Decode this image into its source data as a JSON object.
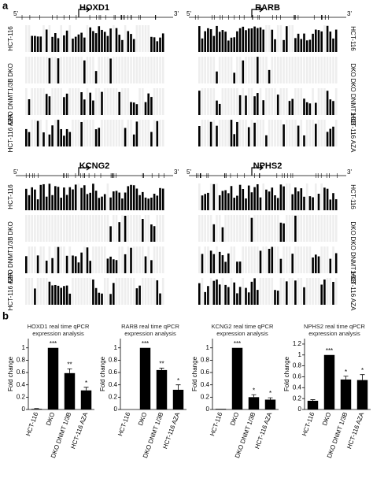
{
  "panel_labels": [
    "a",
    "b"
  ],
  "genes": [
    "HOXD1",
    "RARB",
    "KCNG2",
    "NPHS2"
  ],
  "samples": [
    "HCT-116",
    "DKO",
    "DKO DNMT1/3B",
    "HCT-116 AZA"
  ],
  "strand_labels": [
    "5'",
    "3'"
  ],
  "chart_data": [
    {
      "type": "bar",
      "title": "HOXD1 real time qPCR expression analysis",
      "ylabel": "Fold change",
      "categories": [
        "HCT-116",
        "DKO",
        "DKO DNMT 1/3B",
        "HCT-116 AZA"
      ],
      "values": [
        0.01,
        1.0,
        0.59,
        0.31
      ],
      "errors": [
        0.005,
        0.0,
        0.07,
        0.05
      ],
      "value_labels": [
        null,
        "***",
        "**",
        "*"
      ],
      "color": "#000000",
      "ylim": [
        0,
        1.15
      ],
      "yticks": [
        0,
        0.2,
        0.4,
        0.6,
        0.8,
        1
      ]
    },
    {
      "type": "bar",
      "title": "RARB real time qPCR expression analysis",
      "ylabel": "Fold change",
      "categories": [
        "HCT-116",
        "DKO",
        "DKO DNMT 1/3B",
        "HCT-116 AZA"
      ],
      "values": [
        0.0,
        1.0,
        0.64,
        0.32
      ],
      "errors": [
        0.0,
        0.0,
        0.03,
        0.08
      ],
      "value_labels": [
        null,
        "***",
        "**",
        "*"
      ],
      "color": "#000000",
      "ylim": [
        0,
        1.15
      ],
      "yticks": [
        0,
        0.2,
        0.4,
        0.6,
        0.8,
        1
      ]
    },
    {
      "type": "bar",
      "title": "KCNG2 real time qPCR expression analysis",
      "ylabel": "Fold change",
      "categories": [
        "HCT-116",
        "DKO",
        "DKO DNMT 1/3B",
        "HCT-116 AZA"
      ],
      "values": [
        0.01,
        1.0,
        0.2,
        0.16
      ],
      "errors": [
        0.0,
        0.0,
        0.04,
        0.03
      ],
      "value_labels": [
        null,
        "***",
        "*",
        "*"
      ],
      "color": "#000000",
      "ylim": [
        0,
        1.15
      ],
      "yticks": [
        0,
        0.2,
        0.4,
        0.6,
        0.8,
        1
      ]
    },
    {
      "type": "bar",
      "title": "NPHS2 real time qPCR expression analysis",
      "ylabel": "Fold change",
      "categories": [
        "HCT-116",
        "DKO",
        "DKO DNMT 1/3B",
        "HCT-116 AZA"
      ],
      "values": [
        0.16,
        1.0,
        0.55,
        0.54
      ],
      "errors": [
        0.02,
        0.0,
        0.06,
        0.1
      ],
      "value_labels": [
        null,
        "***",
        "*",
        "*"
      ],
      "color": "#000000",
      "ylim": [
        0,
        1.3
      ],
      "yticks": [
        0,
        0.2,
        0.4,
        0.6,
        0.8,
        1,
        1.2
      ]
    }
  ]
}
